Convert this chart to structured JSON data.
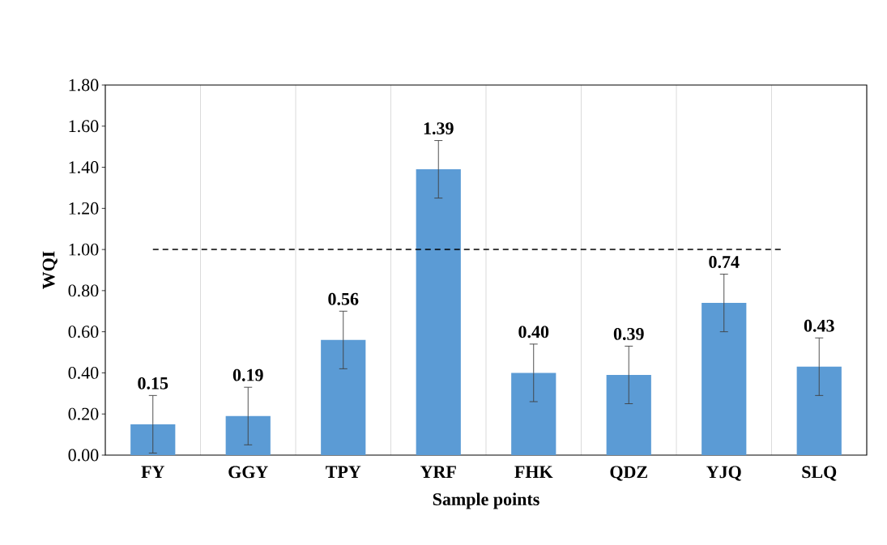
{
  "chart_data": {
    "type": "bar",
    "xlabel": "Sample points",
    "ylabel": "WQI",
    "categories": [
      "FY",
      "GGY",
      "TPY",
      "YRF",
      "FHK",
      "QDZ",
      "YJQ",
      "SLQ"
    ],
    "values": [
      0.15,
      0.19,
      0.56,
      1.39,
      0.4,
      0.39,
      0.74,
      0.43
    ],
    "errors": [
      0.14,
      0.14,
      0.14,
      0.14,
      0.14,
      0.14,
      0.14,
      0.14
    ],
    "value_labels": [
      "0.15",
      "0.19",
      "0.56",
      "1.39",
      "0.40",
      "0.39",
      "0.74",
      "0.43"
    ],
    "color": "#5b9bd5",
    "ylim": [
      0,
      1.8
    ],
    "yticks": [
      {
        "value": 0,
        "label": "0.00"
      },
      {
        "value": 0.2,
        "label": "0.20"
      },
      {
        "value": 0.4,
        "label": "0.40"
      },
      {
        "value": 0.6,
        "label": "0.60"
      },
      {
        "value": 0.8,
        "label": "0.80"
      },
      {
        "value": 1.0,
        "label": "1.00"
      },
      {
        "value": 1.2,
        "label": "1.20"
      },
      {
        "value": 1.4,
        "label": "1.40"
      },
      {
        "value": 1.6,
        "label": "1.60"
      },
      {
        "value": 1.8,
        "label": "1.80"
      }
    ],
    "ref_lines": [
      {
        "axis": "y",
        "value": 1.0,
        "color": "#000000",
        "line_style": "dashed"
      }
    ],
    "grid": "x"
  }
}
